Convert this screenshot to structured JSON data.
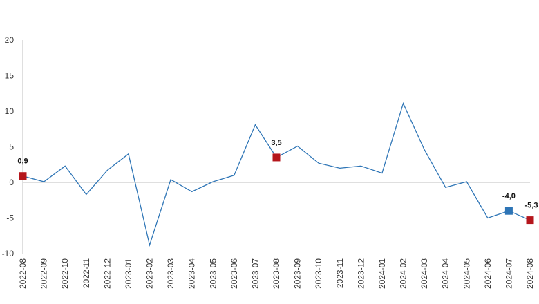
{
  "chart_data": {
    "type": "line",
    "x": [
      "2022-08",
      "2022-09",
      "2022-10",
      "2022-11",
      "2022-12",
      "2023-01",
      "2023-02",
      "2023-03",
      "2023-04",
      "2023-05",
      "2023-06",
      "2023-07",
      "2023-08",
      "2023-09",
      "2023-10",
      "2023-11",
      "2023-12",
      "2024-01",
      "2024-02",
      "2024-03",
      "2024-04",
      "2024-05",
      "2024-06",
      "2024-07",
      "2024-08"
    ],
    "series": [
      {
        "values": [
          0.9,
          0.1,
          2.3,
          -1.7,
          1.7,
          4.0,
          -8.8,
          0.4,
          -1.3,
          0.1,
          1.0,
          8.1,
          3.5,
          5.1,
          2.7,
          2.0,
          2.3,
          1.3,
          11.1,
          4.6,
          -0.7,
          0.1,
          -5.0,
          -4.0,
          -5.3
        ]
      }
    ],
    "ylim": [
      -10,
      20
    ],
    "yticks": [
      "-10",
      "-5",
      "0",
      "5",
      "10",
      "15",
      "20"
    ],
    "annotations": [
      {
        "index": 0,
        "label": "0,9",
        "color": "#b5161c"
      },
      {
        "index": 12,
        "label": "3,5",
        "color": "#b5161c"
      },
      {
        "index": 23,
        "label": "-4,0",
        "color": "#2e75b6"
      },
      {
        "index": 24,
        "label": "-5,3",
        "color": "#b5161c"
      }
    ],
    "line_color": "#2e75b6",
    "grid": false,
    "title": "",
    "xlabel": "",
    "ylabel": ""
  }
}
